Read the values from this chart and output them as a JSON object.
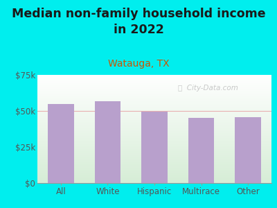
{
  "title": "Median non-family household income\nin 2022",
  "subtitle": "Watauga, TX",
  "categories": [
    "All",
    "White",
    "Hispanic",
    "Multirace",
    "Other"
  ],
  "values": [
    55000,
    56500,
    49500,
    45000,
    45500
  ],
  "bar_color": "#b8a0cc",
  "title_fontsize": 12.5,
  "subtitle_fontsize": 10,
  "subtitle_color": "#cc5500",
  "title_color": "#1a1a1a",
  "background_color": "#00eeee",
  "ylim": [
    0,
    75000
  ],
  "yticks": [
    0,
    25000,
    50000,
    75000
  ],
  "ytick_labels": [
    "$0",
    "$25k",
    "$50k",
    "$75k"
  ],
  "watermark": "ⓘ  City-Data.com",
  "tick_color": "#555555",
  "axis_label_fontsize": 8.5,
  "bar_width": 0.55
}
